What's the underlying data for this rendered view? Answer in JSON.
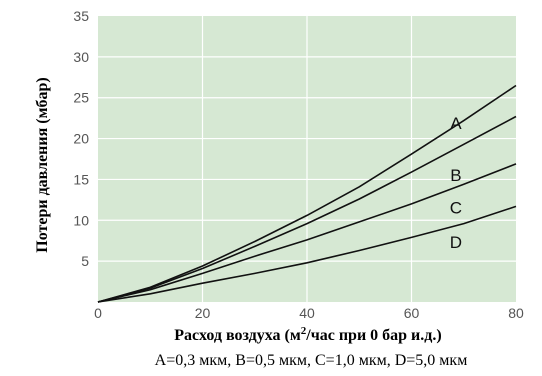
{
  "chart_data": {
    "type": "line",
    "xlabel_prefix": "Расход воздуха (м",
    "xlabel_sup": "2",
    "xlabel_suffix": "/час при 0 бар и.д.)",
    "ylabel": "Потери давления (мбар)",
    "caption": "A=0,3 мкм, B=0,5 мкм, C=1,0 мкм, D=5,0 мкм",
    "xlim": [
      0,
      80
    ],
    "ylim": [
      0,
      35
    ],
    "x_ticks": [
      "0",
      "20",
      "40",
      "60",
      "80"
    ],
    "y_ticks": [
      "5",
      "10",
      "15",
      "20",
      "25",
      "30",
      "35"
    ],
    "grid": true,
    "background_color": "#d6e8d3",
    "grid_color": "#ffffff",
    "line_color": "#111111",
    "series": [
      {
        "name": "A",
        "x": [
          0,
          10,
          20,
          30,
          40,
          50,
          60,
          70,
          80
        ],
        "y": [
          0,
          1.8,
          4.4,
          7.4,
          10.6,
          14.1,
          18.1,
          22.2,
          26.5
        ]
      },
      {
        "name": "B",
        "x": [
          0,
          10,
          20,
          30,
          40,
          50,
          60,
          70,
          80
        ],
        "y": [
          0,
          1.7,
          4.1,
          6.8,
          9.6,
          12.6,
          15.9,
          19.3,
          22.7
        ]
      },
      {
        "name": "C",
        "x": [
          0,
          10,
          20,
          30,
          40,
          50,
          60,
          70,
          80
        ],
        "y": [
          0,
          1.5,
          3.5,
          5.6,
          7.6,
          9.8,
          12.0,
          14.4,
          16.9
        ]
      },
      {
        "name": "D",
        "x": [
          0,
          10,
          20,
          30,
          40,
          50,
          60,
          70,
          80
        ],
        "y": [
          0,
          1.0,
          2.3,
          3.5,
          4.8,
          6.3,
          7.9,
          9.6,
          11.7
        ]
      }
    ],
    "label_positions": [
      {
        "name": "A",
        "x": 68.5,
        "y": 21.2
      },
      {
        "name": "B",
        "x": 68.5,
        "y": 14.8
      },
      {
        "name": "C",
        "x": 68.5,
        "y": 10.8
      },
      {
        "name": "D",
        "x": 68.5,
        "y": 6.6
      }
    ]
  }
}
